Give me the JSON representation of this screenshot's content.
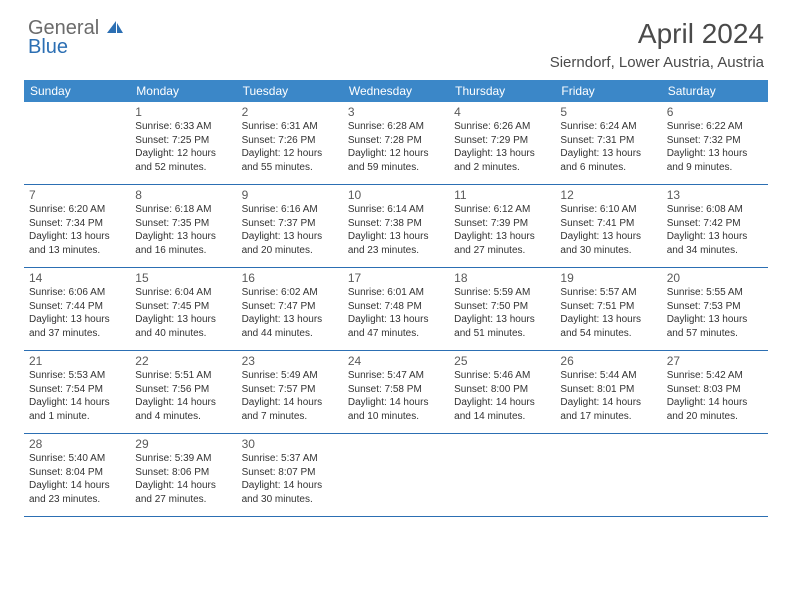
{
  "logo": {
    "line1": "General",
    "line2": "Blue",
    "color_general": "#6b6b6b",
    "color_blue": "#2c6fb3",
    "icon_fill": "#2c6fb3"
  },
  "title": "April 2024",
  "location": "Sierndorf, Lower Austria, Austria",
  "header_bg": "#3b87c8",
  "header_text_color": "#ffffff",
  "divider_color": "#2c6fb3",
  "body_text_color": "#333333",
  "title_color": "#4a4a4a",
  "weekdays": [
    "Sunday",
    "Monday",
    "Tuesday",
    "Wednesday",
    "Thursday",
    "Friday",
    "Saturday"
  ],
  "weeks": [
    [
      null,
      {
        "n": "1",
        "sr": "6:33 AM",
        "ss": "7:25 PM",
        "dl": "12 hours and 52 minutes."
      },
      {
        "n": "2",
        "sr": "6:31 AM",
        "ss": "7:26 PM",
        "dl": "12 hours and 55 minutes."
      },
      {
        "n": "3",
        "sr": "6:28 AM",
        "ss": "7:28 PM",
        "dl": "12 hours and 59 minutes."
      },
      {
        "n": "4",
        "sr": "6:26 AM",
        "ss": "7:29 PM",
        "dl": "13 hours and 2 minutes."
      },
      {
        "n": "5",
        "sr": "6:24 AM",
        "ss": "7:31 PM",
        "dl": "13 hours and 6 minutes."
      },
      {
        "n": "6",
        "sr": "6:22 AM",
        "ss": "7:32 PM",
        "dl": "13 hours and 9 minutes."
      }
    ],
    [
      {
        "n": "7",
        "sr": "6:20 AM",
        "ss": "7:34 PM",
        "dl": "13 hours and 13 minutes."
      },
      {
        "n": "8",
        "sr": "6:18 AM",
        "ss": "7:35 PM",
        "dl": "13 hours and 16 minutes."
      },
      {
        "n": "9",
        "sr": "6:16 AM",
        "ss": "7:37 PM",
        "dl": "13 hours and 20 minutes."
      },
      {
        "n": "10",
        "sr": "6:14 AM",
        "ss": "7:38 PM",
        "dl": "13 hours and 23 minutes."
      },
      {
        "n": "11",
        "sr": "6:12 AM",
        "ss": "7:39 PM",
        "dl": "13 hours and 27 minutes."
      },
      {
        "n": "12",
        "sr": "6:10 AM",
        "ss": "7:41 PM",
        "dl": "13 hours and 30 minutes."
      },
      {
        "n": "13",
        "sr": "6:08 AM",
        "ss": "7:42 PM",
        "dl": "13 hours and 34 minutes."
      }
    ],
    [
      {
        "n": "14",
        "sr": "6:06 AM",
        "ss": "7:44 PM",
        "dl": "13 hours and 37 minutes."
      },
      {
        "n": "15",
        "sr": "6:04 AM",
        "ss": "7:45 PM",
        "dl": "13 hours and 40 minutes."
      },
      {
        "n": "16",
        "sr": "6:02 AM",
        "ss": "7:47 PM",
        "dl": "13 hours and 44 minutes."
      },
      {
        "n": "17",
        "sr": "6:01 AM",
        "ss": "7:48 PM",
        "dl": "13 hours and 47 minutes."
      },
      {
        "n": "18",
        "sr": "5:59 AM",
        "ss": "7:50 PM",
        "dl": "13 hours and 51 minutes."
      },
      {
        "n": "19",
        "sr": "5:57 AM",
        "ss": "7:51 PM",
        "dl": "13 hours and 54 minutes."
      },
      {
        "n": "20",
        "sr": "5:55 AM",
        "ss": "7:53 PM",
        "dl": "13 hours and 57 minutes."
      }
    ],
    [
      {
        "n": "21",
        "sr": "5:53 AM",
        "ss": "7:54 PM",
        "dl": "14 hours and 1 minute."
      },
      {
        "n": "22",
        "sr": "5:51 AM",
        "ss": "7:56 PM",
        "dl": "14 hours and 4 minutes."
      },
      {
        "n": "23",
        "sr": "5:49 AM",
        "ss": "7:57 PM",
        "dl": "14 hours and 7 minutes."
      },
      {
        "n": "24",
        "sr": "5:47 AM",
        "ss": "7:58 PM",
        "dl": "14 hours and 10 minutes."
      },
      {
        "n": "25",
        "sr": "5:46 AM",
        "ss": "8:00 PM",
        "dl": "14 hours and 14 minutes."
      },
      {
        "n": "26",
        "sr": "5:44 AM",
        "ss": "8:01 PM",
        "dl": "14 hours and 17 minutes."
      },
      {
        "n": "27",
        "sr": "5:42 AM",
        "ss": "8:03 PM",
        "dl": "14 hours and 20 minutes."
      }
    ],
    [
      {
        "n": "28",
        "sr": "5:40 AM",
        "ss": "8:04 PM",
        "dl": "14 hours and 23 minutes."
      },
      {
        "n": "29",
        "sr": "5:39 AM",
        "ss": "8:06 PM",
        "dl": "14 hours and 27 minutes."
      },
      {
        "n": "30",
        "sr": "5:37 AM",
        "ss": "8:07 PM",
        "dl": "14 hours and 30 minutes."
      },
      null,
      null,
      null,
      null
    ]
  ],
  "labels": {
    "sunrise_prefix": "Sunrise: ",
    "sunset_prefix": "Sunset: ",
    "daylight_prefix": "Daylight: "
  }
}
